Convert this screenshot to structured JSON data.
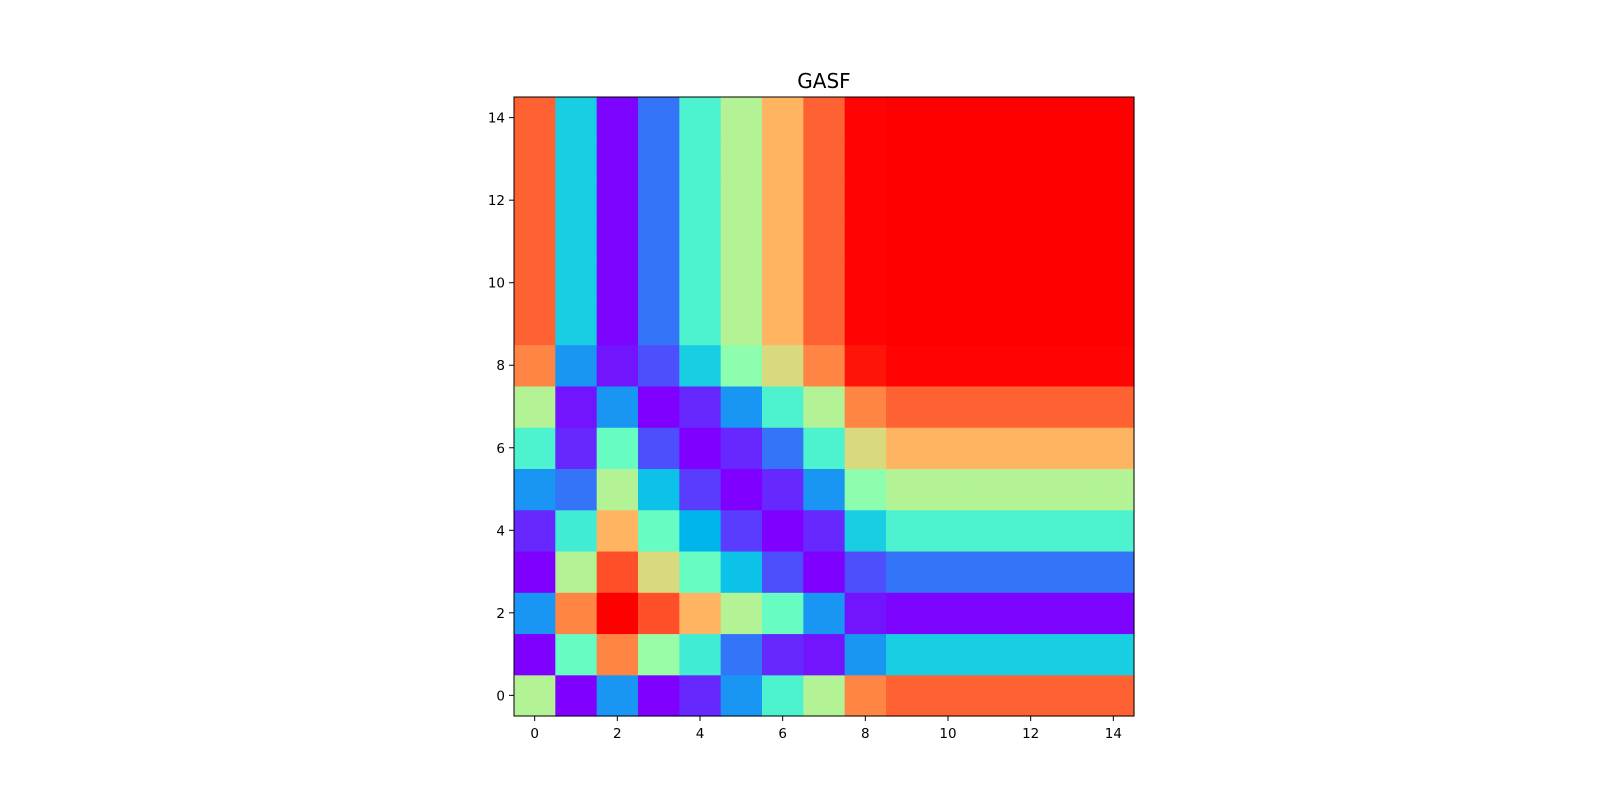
{
  "chart_data": {
    "type": "heatmap",
    "title": "GASF",
    "xlabel": "",
    "ylabel": "",
    "colormap": "rainbow",
    "value_range": [
      -1,
      1
    ],
    "xlim": [
      -0.5,
      14.5
    ],
    "ylim": [
      -0.5,
      14.5
    ],
    "origin": "lower",
    "grid": false,
    "x_ticks": [
      0,
      2,
      4,
      6,
      8,
      10,
      12,
      14
    ],
    "y_ticks": [
      0,
      2,
      4,
      6,
      8,
      10,
      12,
      14
    ],
    "x_tick_labels": [
      "0",
      "2",
      "4",
      "6",
      "8",
      "10",
      "12",
      "14"
    ],
    "y_tick_labels": [
      "0",
      "2",
      "4",
      "6",
      "8",
      "10",
      "12",
      "14"
    ],
    "rows_bottom_to_top": [
      [
        0.2,
        -1.0,
        -0.6,
        -1.0,
        -0.9,
        -0.6,
        -0.2,
        0.2,
        0.65,
        0.75,
        0.75,
        0.75,
        0.75,
        0.75,
        0.75
      ],
      [
        -1.0,
        -0.1,
        0.65,
        0.1,
        -0.25,
        -0.7,
        -0.9,
        -0.95,
        -0.6,
        -0.4,
        -0.4,
        -0.4,
        -0.4,
        -0.4,
        -0.4
      ],
      [
        -0.6,
        0.65,
        1.0,
        0.8,
        0.5,
        0.2,
        -0.1,
        -0.6,
        -0.95,
        -0.99,
        -0.99,
        -0.99,
        -0.99,
        -0.99,
        -0.99
      ],
      [
        -1.0,
        0.2,
        0.8,
        0.35,
        -0.1,
        -0.45,
        -0.8,
        -1.0,
        -0.8,
        -0.7,
        -0.7,
        -0.7,
        -0.7,
        -0.7,
        -0.7
      ],
      [
        -0.9,
        -0.25,
        0.5,
        -0.1,
        -0.5,
        -0.85,
        -1.0,
        -0.9,
        -0.4,
        -0.2,
        -0.2,
        -0.2,
        -0.2,
        -0.2,
        -0.2
      ],
      [
        -0.6,
        -0.7,
        0.2,
        -0.45,
        -0.85,
        -1.0,
        -0.9,
        -0.6,
        0.05,
        0.2,
        0.2,
        0.2,
        0.2,
        0.2,
        0.2
      ],
      [
        -0.2,
        -0.9,
        -0.1,
        -0.8,
        -1.0,
        -0.9,
        -0.7,
        -0.2,
        0.35,
        0.5,
        0.5,
        0.5,
        0.5,
        0.5,
        0.5
      ],
      [
        0.2,
        -0.95,
        -0.6,
        -1.0,
        -0.9,
        -0.6,
        -0.2,
        0.2,
        0.65,
        0.75,
        0.75,
        0.75,
        0.75,
        0.75,
        0.75
      ],
      [
        0.65,
        -0.6,
        -0.95,
        -0.8,
        -0.4,
        0.05,
        0.35,
        0.65,
        0.95,
        0.99,
        0.99,
        0.99,
        0.99,
        0.99,
        0.99
      ],
      [
        0.75,
        -0.4,
        -0.99,
        -0.7,
        -0.2,
        0.2,
        0.5,
        0.75,
        0.99,
        1.0,
        1.0,
        1.0,
        1.0,
        1.0,
        1.0
      ],
      [
        0.75,
        -0.4,
        -0.99,
        -0.7,
        -0.2,
        0.2,
        0.5,
        0.75,
        0.99,
        1.0,
        1.0,
        1.0,
        1.0,
        1.0,
        1.0
      ],
      [
        0.75,
        -0.4,
        -0.99,
        -0.7,
        -0.2,
        0.2,
        0.5,
        0.75,
        0.99,
        1.0,
        1.0,
        1.0,
        1.0,
        1.0,
        1.0
      ],
      [
        0.75,
        -0.4,
        -0.99,
        -0.7,
        -0.2,
        0.2,
        0.5,
        0.75,
        0.99,
        1.0,
        1.0,
        1.0,
        1.0,
        1.0,
        1.0
      ],
      [
        0.75,
        -0.4,
        -0.99,
        -0.7,
        -0.2,
        0.2,
        0.5,
        0.75,
        0.99,
        1.0,
        1.0,
        1.0,
        1.0,
        1.0,
        1.0
      ],
      [
        0.75,
        -0.4,
        -0.99,
        -0.7,
        -0.2,
        0.2,
        0.5,
        0.75,
        0.99,
        1.0,
        1.0,
        1.0,
        1.0,
        1.0,
        1.0
      ]
    ]
  }
}
